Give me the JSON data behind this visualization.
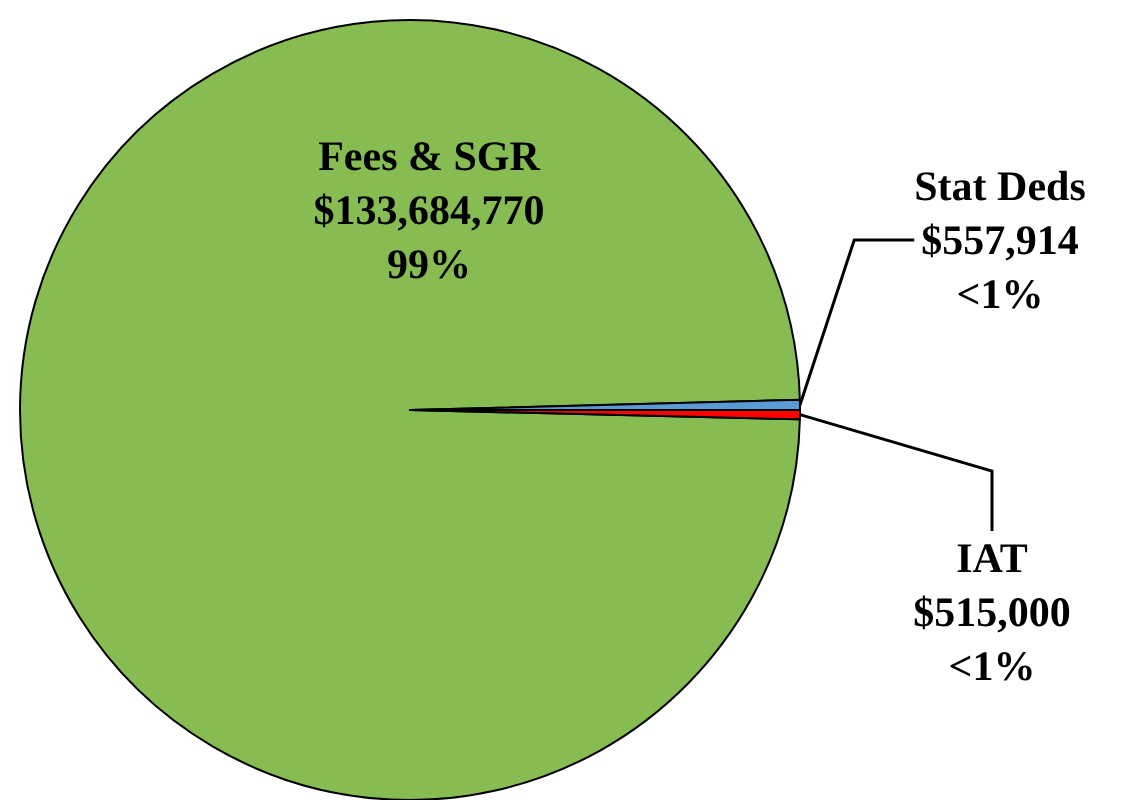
{
  "chart_data": {
    "type": "pie",
    "categories": [
      "Fees & SGR",
      "Stat Deds",
      "IAT"
    ],
    "values": [
      133684770,
      557914,
      515000
    ],
    "colors": [
      "#86bc52",
      "#5b9bd5",
      "#ff0000"
    ],
    "value_labels": [
      "$133,684,770\n99%",
      "$557,914\n<1%",
      "$515,000\n<1%"
    ],
    "legend": false
  }
}
